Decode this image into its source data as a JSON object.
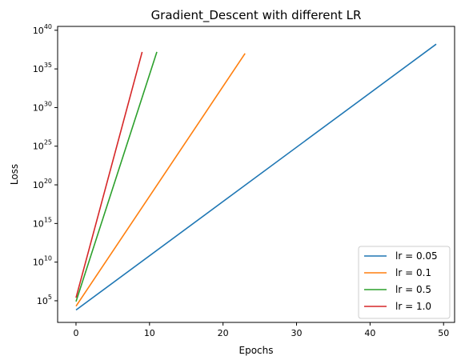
{
  "chart_data": {
    "type": "line",
    "title": "Gradient_Descent with different LR",
    "xlabel": "Epochs",
    "ylabel": "Loss",
    "xlim": [
      -2.5,
      51.5
    ],
    "ylim_log10": [
      2.2,
      40.5
    ],
    "yscale": "log",
    "grid": false,
    "legend_position": "lower-right",
    "xticks": [
      0,
      10,
      20,
      30,
      40,
      50
    ],
    "yticks": [
      {
        "mantissa": "10",
        "exponent": "5",
        "log10": 5
      },
      {
        "mantissa": "10",
        "exponent": "10",
        "log10": 10
      },
      {
        "mantissa": "10",
        "exponent": "15",
        "log10": 15
      },
      {
        "mantissa": "10",
        "exponent": "20",
        "log10": 20
      },
      {
        "mantissa": "10",
        "exponent": "25",
        "log10": 25
      },
      {
        "mantissa": "10",
        "exponent": "30",
        "log10": 30
      },
      {
        "mantissa": "10",
        "exponent": "35",
        "log10": 35
      },
      {
        "mantissa": "10",
        "exponent": "40",
        "log10": 40
      }
    ],
    "series": [
      {
        "name": "lr = 0.05",
        "color": "#1f77b4",
        "x": [
          0,
          49
        ],
        "log10_y": [
          3.8,
          38.2
        ]
      },
      {
        "name": "lr = 0.1",
        "color": "#ff7f0e",
        "x": [
          0,
          23
        ],
        "log10_y": [
          4.3,
          37.0
        ]
      },
      {
        "name": "lr = 0.5",
        "color": "#2ca02c",
        "x": [
          0,
          11
        ],
        "log10_y": [
          4.9,
          37.2
        ]
      },
      {
        "name": "lr = 1.0",
        "color": "#d62728",
        "x": [
          0,
          9
        ],
        "log10_y": [
          5.4,
          37.2
        ]
      }
    ]
  }
}
